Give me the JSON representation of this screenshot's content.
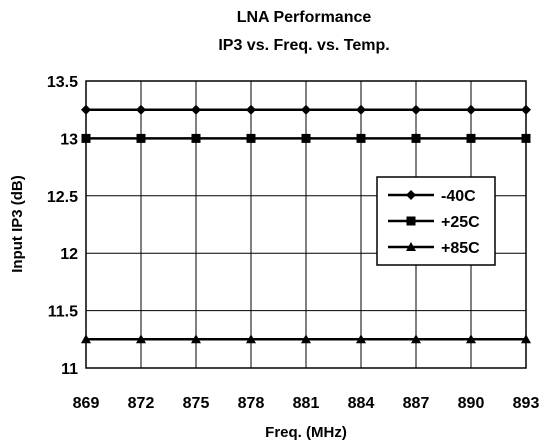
{
  "chart_data": {
    "type": "line",
    "title": [
      "LNA Performance",
      "IP3 vs. Freq. vs. Temp."
    ],
    "xlabel": "Freq. (MHz)",
    "ylabel": "Input IP3 (dB)",
    "x": [
      869,
      872,
      875,
      878,
      881,
      884,
      887,
      890,
      893
    ],
    "x_tick_labels": [
      "869",
      "872",
      "875",
      "878",
      "881",
      "884",
      "887",
      "890",
      "893"
    ],
    "y_tick_labels": [
      "13.5",
      "13",
      "12.5",
      "12",
      "11.5",
      "11"
    ],
    "y_ticks": [
      13.5,
      13,
      12.5,
      12,
      11.5,
      11
    ],
    "xlim": [
      869,
      893
    ],
    "ylim": [
      11,
      13.5
    ],
    "grid": true,
    "legend_position": "right",
    "series": [
      {
        "name": "-40C",
        "marker": "diamond",
        "color": "#000000",
        "values": [
          13.25,
          13.25,
          13.25,
          13.25,
          13.25,
          13.25,
          13.25,
          13.25,
          13.25
        ]
      },
      {
        "name": "+25C",
        "marker": "square",
        "color": "#000000",
        "values": [
          13.0,
          13.0,
          13.0,
          13.0,
          13.0,
          13.0,
          13.0,
          13.0,
          13.0
        ]
      },
      {
        "name": "+85C",
        "marker": "triangle",
        "color": "#000000",
        "values": [
          11.25,
          11.25,
          11.25,
          11.25,
          11.25,
          11.25,
          11.25,
          11.25,
          11.25
        ]
      }
    ]
  }
}
